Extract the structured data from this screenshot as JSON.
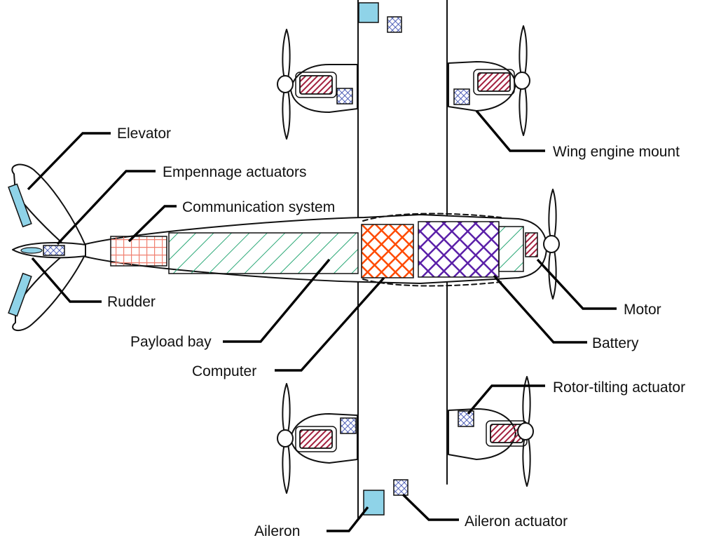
{
  "labels": {
    "elevator": "Elevator",
    "empennage_actuators": "Empennage actuators",
    "communication_system": "Communication system",
    "wing_engine_mount": "Wing engine mount",
    "rudder": "Rudder",
    "motor": "Motor",
    "payload_bay": "Payload bay",
    "battery": "Battery",
    "computer": "Computer",
    "rotor_tilting_actuator": "Rotor-tilting actuator",
    "aileron": "Aileron",
    "aileron_actuator": "Aileron actuator"
  },
  "colors": {
    "aileron_elevator": "#8fd3e8",
    "actuator": "#5a6fc4",
    "motor": "#a3213f",
    "communication_system": "#f08070",
    "payload_bay": "#2aa876",
    "computer": "#ff4a00",
    "battery": "#5a1fa8",
    "outline": "#111111"
  }
}
